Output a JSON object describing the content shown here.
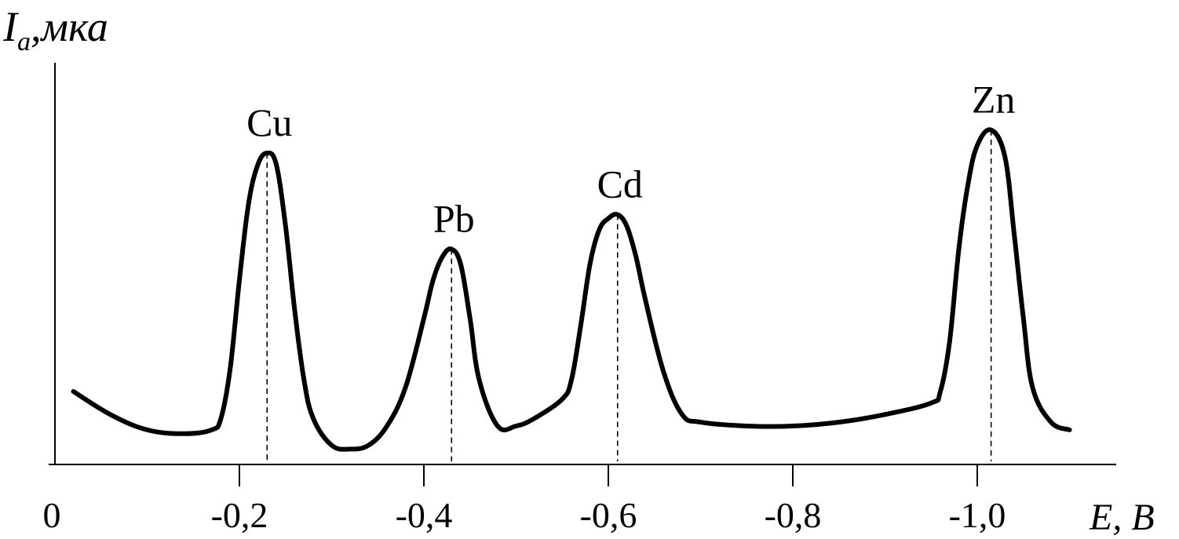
{
  "chart_data": {
    "type": "line",
    "title": "",
    "ylabel": {
      "symbol": "I",
      "subscript": "a",
      "unit": ",мка"
    },
    "xlabel": "E, В",
    "xlim": [
      0,
      -1.1
    ],
    "ylim": [
      0,
      1.0
    ],
    "x_ticks": [
      {
        "value": 0,
        "label": "0"
      },
      {
        "value": -0.2,
        "label": "-0,2"
      },
      {
        "value": -0.4,
        "label": "-0,4"
      },
      {
        "value": -0.6,
        "label": "-0,6"
      },
      {
        "value": -0.8,
        "label": "-0,8"
      },
      {
        "value": -1.0,
        "label": "-1,0"
      }
    ],
    "peaks": [
      {
        "label": "Cu",
        "x": -0.23,
        "y": 0.81
      },
      {
        "label": "Pb",
        "x": -0.43,
        "y": 0.56
      },
      {
        "label": "Cd",
        "x": -0.61,
        "y": 0.65
      },
      {
        "label": "Zn",
        "x": -1.015,
        "y": 0.87
      }
    ],
    "series": [
      {
        "x": [
          -0.02,
          -0.06,
          -0.1,
          -0.14,
          -0.17,
          -0.18,
          -0.19,
          -0.2,
          -0.21,
          -0.22,
          -0.23,
          -0.24,
          -0.25,
          -0.26,
          -0.27,
          -0.28,
          -0.3,
          -0.32,
          -0.34,
          -0.36,
          -0.38,
          -0.4,
          -0.41,
          -0.42,
          -0.43,
          -0.44,
          -0.45,
          -0.46,
          -0.48,
          -0.5,
          -0.52,
          -0.55,
          -0.56,
          -0.57,
          -0.58,
          -0.59,
          -0.6,
          -0.61,
          -0.62,
          -0.63,
          -0.64,
          -0.66,
          -0.68,
          -0.7,
          -0.75,
          -0.8,
          -0.85,
          -0.9,
          -0.95,
          -0.96,
          -0.97,
          -0.98,
          -0.99,
          -1.0,
          -1.015,
          -1.03,
          -1.04,
          -1.05,
          -1.06,
          -1.08,
          -1.1
        ],
        "y": [
          0.19,
          0.13,
          0.09,
          0.08,
          0.09,
          0.12,
          0.25,
          0.48,
          0.68,
          0.78,
          0.81,
          0.78,
          0.62,
          0.4,
          0.22,
          0.12,
          0.05,
          0.04,
          0.05,
          0.1,
          0.2,
          0.38,
          0.48,
          0.54,
          0.56,
          0.52,
          0.38,
          0.22,
          0.1,
          0.1,
          0.12,
          0.17,
          0.22,
          0.36,
          0.52,
          0.61,
          0.64,
          0.65,
          0.62,
          0.54,
          0.43,
          0.24,
          0.13,
          0.11,
          0.1,
          0.1,
          0.11,
          0.13,
          0.16,
          0.19,
          0.32,
          0.56,
          0.73,
          0.83,
          0.87,
          0.8,
          0.6,
          0.38,
          0.2,
          0.11,
          0.09
        ]
      }
    ]
  }
}
